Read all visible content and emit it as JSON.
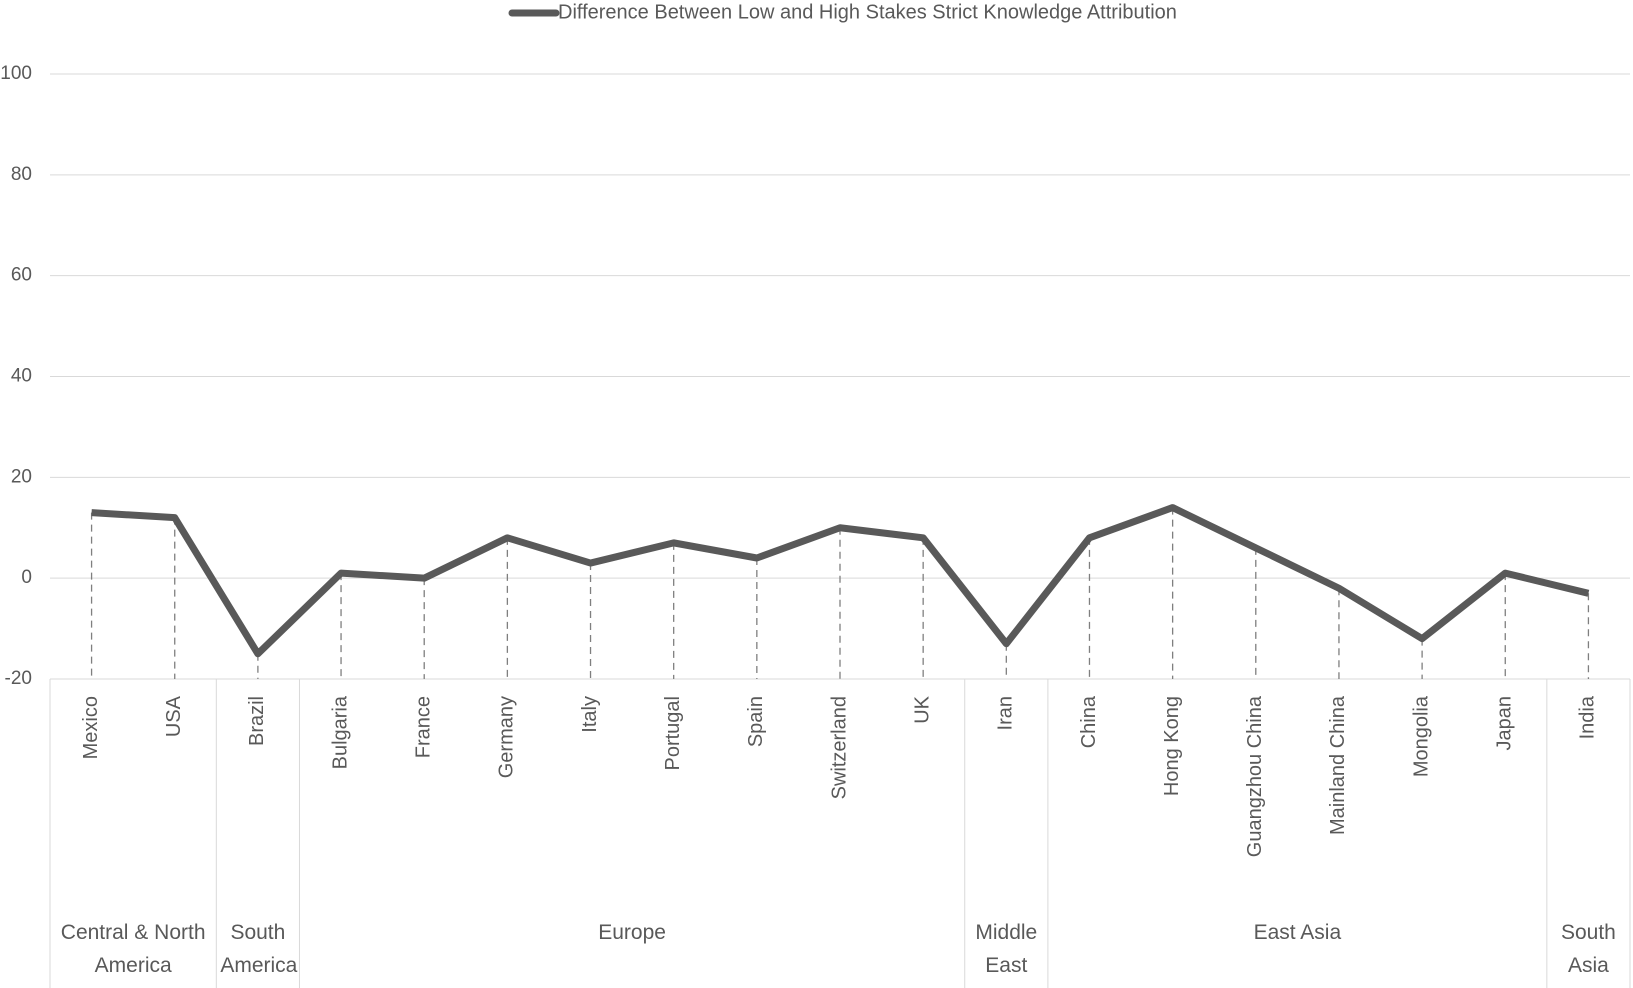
{
  "chart_data": {
    "type": "line",
    "groups": [
      {
        "name": "Central & North America",
        "categories": [
          "Mexico",
          "USA"
        ]
      },
      {
        "name": "South America",
        "categories": [
          "Brazil"
        ]
      },
      {
        "name": "Europe",
        "categories": [
          "Bulgaria",
          "France",
          "Germany",
          "Italy",
          "Portugal",
          "Spain",
          "Switzerland",
          "UK"
        ]
      },
      {
        "name": "Middle East",
        "categories": [
          "Iran"
        ]
      },
      {
        "name": "East Asia",
        "categories": [
          "China",
          "Hong Kong",
          "Guangzhou China",
          "Mainland China",
          "Mongolia",
          "Japan"
        ]
      },
      {
        "name": "South Asia",
        "categories": [
          "India"
        ]
      }
    ],
    "series": [
      {
        "name": "Difference Between Low and High Stakes Strict Knowledge Attribution",
        "color": "#595959",
        "values": [
          13,
          12,
          -15,
          1,
          0,
          8,
          3,
          7,
          4,
          10,
          8,
          -13,
          8,
          14,
          6,
          -2,
          -12,
          1,
          -3
        ]
      }
    ],
    "ylim": [
      -20,
      100
    ],
    "yticks": [
      -20,
      0,
      20,
      40,
      60,
      80,
      100
    ],
    "grid": true,
    "legend": "top",
    "drop_lines": true
  }
}
